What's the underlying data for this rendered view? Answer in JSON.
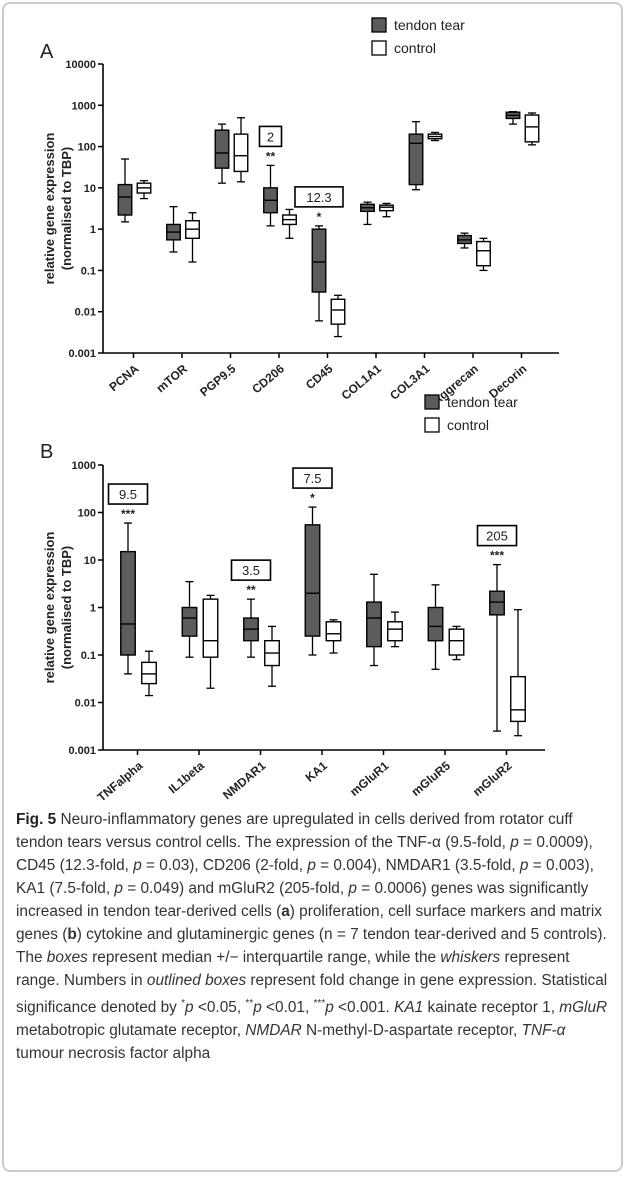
{
  "figure": {
    "label": "Fig. 5"
  },
  "caption": {
    "lead": "Neuro-inflammatory genes are upregulated in cells derived from rotator cuff tendon tears versus control cells. The expression of the TNF-α (9.5-fold, ",
    "runs": [
      {
        "t": "p",
        "i": true
      },
      {
        "t": " = 0.0009), CD45 (12.3-fold, "
      },
      {
        "t": "p",
        "i": true
      },
      {
        "t": " = 0.03), CD206 (2-fold, "
      },
      {
        "t": "p",
        "i": true
      },
      {
        "t": " = 0.004), NMDAR1 (3.5-fold, "
      },
      {
        "t": "p",
        "i": true
      },
      {
        "t": " = 0.003), KA1 (7.5-fold, "
      },
      {
        "t": "p",
        "i": true
      },
      {
        "t": " = 0.049) and mGluR2 (205-fold, "
      },
      {
        "t": "p",
        "i": true
      },
      {
        "t": " = 0.0006) genes was significantly increased in tendon tear-derived cells ("
      },
      {
        "t": "a",
        "b": true
      },
      {
        "t": ") proliferation, cell surface markers and matrix genes ("
      },
      {
        "t": "b",
        "b": true
      },
      {
        "t": ") cytokine and glutaminergic genes (n = 7 tendon tear-derived and 5 controls). The "
      },
      {
        "t": "boxes",
        "i": true
      },
      {
        "t": " represent median +/− interquartile range, while the "
      },
      {
        "t": "whiskers",
        "i": true
      },
      {
        "t": " represent range. Numbers in "
      },
      {
        "t": "outlined boxes",
        "i": true
      },
      {
        "t": " represent fold change in gene expression. Statistical significance denoted by "
      },
      {
        "t": "*",
        "sup": true
      },
      {
        "t": "p",
        "i": true
      },
      {
        "t": " <0.05, "
      },
      {
        "t": "**",
        "sup": true
      },
      {
        "t": "p",
        "i": true
      },
      {
        "t": " <0.01, "
      },
      {
        "t": "***",
        "sup": true
      },
      {
        "t": "p",
        "i": true
      },
      {
        "t": " <0.001. "
      },
      {
        "t": "KA1",
        "i": true
      },
      {
        "t": " kainate receptor 1, "
      },
      {
        "t": "mGluR",
        "i": true
      },
      {
        "t": " metabotropic glutamate receptor, "
      },
      {
        "t": "NMDAR",
        "i": true
      },
      {
        "t": " N-methyl-D-aspartate receptor, "
      },
      {
        "t": "TNF-α",
        "i": true
      },
      {
        "t": " tumour necrosis factor alpha"
      }
    ]
  },
  "colors": {
    "tendon_tear": "#5c5c5c",
    "control": "#ffffff",
    "stroke": "#000000",
    "frame": "#c9cbcd"
  },
  "chart_data": [
    {
      "panel": "A",
      "type": "box",
      "scale": "log",
      "ylabel": [
        "relative gene expression",
        "(normalised to TBP)"
      ],
      "ylim": [
        0.001,
        10000
      ],
      "yticks": [
        "0.001",
        "0.01",
        "0.1",
        "1",
        "10",
        "100",
        "1000",
        "10000"
      ],
      "legend": [
        "tendon tear",
        "control"
      ],
      "legend_position": "top",
      "categories": [
        "PCNA",
        "mTOR",
        "PGP9.5",
        "CD206",
        "CD45",
        "COL1A1",
        "COL3A1",
        "Aggrecan",
        "Decorin"
      ],
      "series": [
        {
          "name": "tendon tear",
          "boxes": [
            {
              "min": 1.5,
              "q1": 2.2,
              "med": 6,
              "q3": 12,
              "max": 50
            },
            {
              "min": 0.28,
              "q1": 0.55,
              "med": 0.85,
              "q3": 1.3,
              "max": 3.5
            },
            {
              "min": 13,
              "q1": 30,
              "med": 70,
              "q3": 250,
              "max": 350
            },
            {
              "min": 1.2,
              "q1": 2.5,
              "med": 5,
              "q3": 10,
              "max": 35
            },
            {
              "min": 0.006,
              "q1": 0.03,
              "med": 0.16,
              "q3": 1,
              "max": 1.2
            },
            {
              "min": 1.3,
              "q1": 2.7,
              "med": 3.3,
              "q3": 4,
              "max": 4.5
            },
            {
              "min": 9,
              "q1": 12,
              "med": 120,
              "q3": 200,
              "max": 400
            },
            {
              "min": 0.35,
              "q1": 0.45,
              "med": 0.55,
              "q3": 0.7,
              "max": 0.8
            },
            {
              "min": 350,
              "q1": 480,
              "med": 570,
              "q3": 680,
              "max": 700
            }
          ]
        },
        {
          "name": "control",
          "boxes": [
            {
              "min": 5.5,
              "q1": 7.5,
              "med": 10,
              "q3": 13,
              "max": 15
            },
            {
              "min": 0.16,
              "q1": 0.6,
              "med": 1,
              "q3": 1.6,
              "max": 2.5
            },
            {
              "min": 14,
              "q1": 25,
              "med": 60,
              "q3": 200,
              "max": 500
            },
            {
              "min": 0.6,
              "q1": 1.3,
              "med": 1.7,
              "q3": 2.2,
              "max": 3
            },
            {
              "min": 0.0025,
              "q1": 0.005,
              "med": 0.011,
              "q3": 0.02,
              "max": 0.025
            },
            {
              "min": 2,
              "q1": 2.8,
              "med": 3.4,
              "q3": 3.8,
              "max": 4.2
            },
            {
              "min": 140,
              "q1": 155,
              "med": 175,
              "q3": 200,
              "max": 220
            },
            {
              "min": 0.1,
              "q1": 0.13,
              "med": 0.3,
              "q3": 0.5,
              "max": 0.6
            },
            {
              "min": 110,
              "q1": 130,
              "med": 300,
              "q3": 580,
              "max": 650
            }
          ]
        }
      ],
      "annotations": [
        {
          "category": "CD206",
          "fold_change": "2",
          "significance": "**"
        },
        {
          "category": "CD45",
          "fold_change": "12.3",
          "significance": "*"
        }
      ]
    },
    {
      "panel": "B",
      "type": "box",
      "scale": "log",
      "ylabel": [
        "relative gene expression",
        "(normalised to TBP)"
      ],
      "ylim": [
        0.001,
        1000
      ],
      "yticks": [
        "0.001",
        "0.01",
        "0.1",
        "1",
        "10",
        "100",
        "1000"
      ],
      "legend": [
        "tendon tear",
        "control"
      ],
      "legend_position": "top-right",
      "categories": [
        "TNFalpha",
        "IL1beta",
        "NMDAR1",
        "KA1",
        "mGluR1",
        "mGluR5",
        "mGluR2"
      ],
      "series": [
        {
          "name": "tendon tear",
          "boxes": [
            {
              "min": 0.04,
              "q1": 0.1,
              "med": 0.45,
              "q3": 15,
              "max": 60
            },
            {
              "min": 0.09,
              "q1": 0.25,
              "med": 0.6,
              "q3": 1,
              "max": 3.5
            },
            {
              "min": 0.09,
              "q1": 0.2,
              "med": 0.35,
              "q3": 0.6,
              "max": 1.5
            },
            {
              "min": 0.1,
              "q1": 0.25,
              "med": 2,
              "q3": 55,
              "max": 130
            },
            {
              "min": 0.06,
              "q1": 0.15,
              "med": 0.6,
              "q3": 1.3,
              "max": 5
            },
            {
              "min": 0.05,
              "q1": 0.2,
              "med": 0.4,
              "q3": 1,
              "max": 3
            },
            {
              "min": 0.0025,
              "q1": 0.7,
              "med": 1.3,
              "q3": 2.2,
              "max": 8
            }
          ]
        },
        {
          "name": "control",
          "boxes": [
            {
              "min": 0.014,
              "q1": 0.025,
              "med": 0.04,
              "q3": 0.07,
              "max": 0.12
            },
            {
              "min": 0.02,
              "q1": 0.09,
              "med": 0.2,
              "q3": 1.5,
              "max": 1.8
            },
            {
              "min": 0.022,
              "q1": 0.06,
              "med": 0.11,
              "q3": 0.2,
              "max": 0.4
            },
            {
              "min": 0.11,
              "q1": 0.2,
              "med": 0.28,
              "q3": 0.5,
              "max": 0.55
            },
            {
              "min": 0.15,
              "q1": 0.2,
              "med": 0.35,
              "q3": 0.5,
              "max": 0.8
            },
            {
              "min": 0.08,
              "q1": 0.1,
              "med": 0.2,
              "q3": 0.35,
              "max": 0.4
            },
            {
              "min": 0.002,
              "q1": 0.004,
              "med": 0.007,
              "q3": 0.035,
              "max": 0.9
            }
          ]
        }
      ],
      "annotations": [
        {
          "category": "TNFalpha",
          "fold_change": "9.5",
          "significance": "***"
        },
        {
          "category": "NMDAR1",
          "fold_change": "3.5",
          "significance": "**"
        },
        {
          "category": "KA1",
          "fold_change": "7.5",
          "significance": "*"
        },
        {
          "category": "mGluR2",
          "fold_change": "205",
          "significance": "***"
        }
      ]
    }
  ]
}
